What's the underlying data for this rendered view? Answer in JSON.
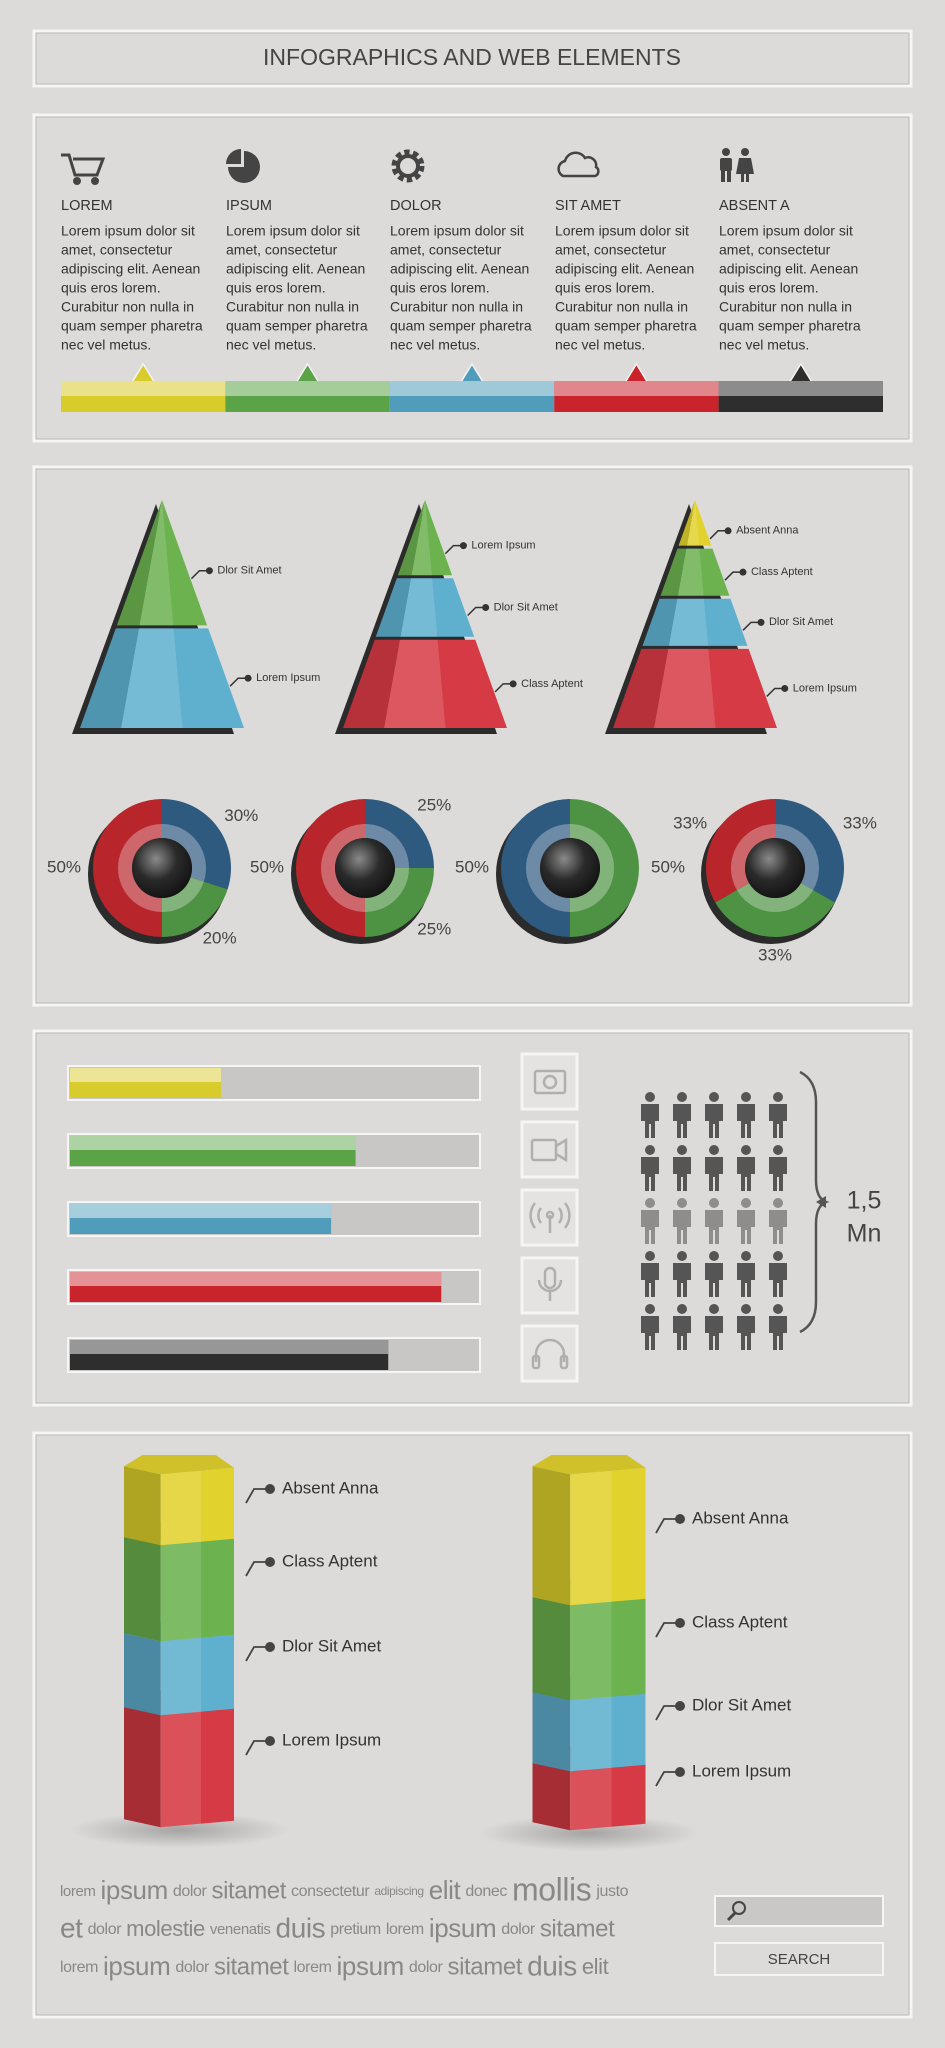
{
  "header": {
    "title": "INFOGRAPHICS AND WEB ELEMENTS"
  },
  "features": [
    {
      "heading": "LOREM",
      "color": "#d8cb2c",
      "lines": [
        "Lorem ipsum dolor sit",
        "amet, consectetur",
        "adipiscing elit. Aenean",
        "quis eros lorem.",
        "Curabitur non nulla in",
        "quam semper pharetra",
        "nec vel metus."
      ]
    },
    {
      "heading": "IPSUM",
      "color": "#5aa447",
      "lines": [
        "Lorem ipsum dolor sit",
        "amet, consectetur",
        "adipiscing elit. Aenean",
        "quis eros lorem.",
        "Curabitur non nulla in",
        "quam semper pharetra",
        "nec vel metus."
      ]
    },
    {
      "heading": "DOLOR",
      "color": "#4f9dbb",
      "lines": [
        "Lorem ipsum dolor sit",
        "amet, consectetur",
        "adipiscing elit. Aenean",
        "quis eros lorem.",
        "Curabitur non nulla in",
        "quam semper pharetra",
        "nec vel metus."
      ]
    },
    {
      "heading": "SIT AMET",
      "color": "#c9242c",
      "lines": [
        "Lorem ipsum dolor sit",
        "amet, consectetur",
        "adipiscing elit. Aenean",
        "quis eros lorem.",
        "Curabitur non nulla in",
        "quam semper pharetra",
        "nec vel metus."
      ]
    },
    {
      "heading": "ABSENT A",
      "color": "#2e2e2e",
      "lines": [
        "Lorem ipsum dolor sit",
        "amet, consectetur",
        "adipiscing elit. Aenean",
        "quis eros lorem.",
        "Curabitur non nulla in",
        "quam semper pharetra",
        "nec vel metus."
      ]
    }
  ],
  "pyramids": [
    {
      "labels": [
        "Dlor Sit Amet",
        "Lorem Ipsum"
      ],
      "colors": [
        "#6cb24f",
        "#5fb0cf"
      ]
    },
    {
      "labels": [
        "Lorem Ipsum",
        "Dlor Sit Amet",
        "Class Aptent"
      ],
      "colors": [
        "#6cb24f",
        "#5fb0cf",
        "#d63a44"
      ]
    },
    {
      "labels": [
        "Absent Anna",
        "Class Aptent",
        "Dlor Sit Amet",
        "Lorem Ipsum"
      ],
      "colors": [
        "#e2d22e",
        "#6cb24f",
        "#5fb0cf",
        "#d63a44"
      ]
    }
  ],
  "donuts": [
    {
      "values": [
        30,
        20,
        50
      ],
      "value_labels": [
        "30%",
        "20%",
        "50%"
      ],
      "colors": [
        "#2e5a80",
        "#4d9343",
        "#b8262c"
      ]
    },
    {
      "values": [
        25,
        25,
        50
      ],
      "value_labels": [
        "25%",
        "25%",
        "50%"
      ],
      "colors": [
        "#2e5a80",
        "#4d9343",
        "#b8262c"
      ]
    },
    {
      "values": [
        50,
        50
      ],
      "value_labels": [
        "50%",
        "50%"
      ],
      "colors": [
        "#4d9343",
        "#2e5a80"
      ]
    },
    {
      "values": [
        33,
        33,
        33
      ],
      "value_labels": [
        "33%",
        "33%",
        "33%"
      ],
      "colors": [
        "#2e5a80",
        "#4d9343",
        "#b8262c"
      ]
    }
  ],
  "progress": {
    "xlim": [
      0,
      100
    ],
    "values": [
      37,
      70,
      64,
      91,
      78
    ],
    "colors": [
      "#d8cb2c",
      "#5aa447",
      "#4f9dbb",
      "#c9242c",
      "#2e2e2e"
    ]
  },
  "people": {
    "label_lines": [
      "1,5",
      "Mn"
    ]
  },
  "columns": {
    "colors": [
      "#e2d22e",
      "#6cb24f",
      "#5fb0cf",
      "#d63a44"
    ],
    "items": [
      {
        "labels": [
          "Absent Anna",
          "Class Aptent",
          "Dlor Sit Amet",
          "Lorem Ipsum"
        ]
      },
      {
        "labels": [
          "Absent Anna",
          "Class Aptent",
          "Dlor Sit Amet",
          "Lorem Ipsum"
        ]
      }
    ]
  },
  "tags": [
    [
      "lorem",
      "ipsum",
      "dolor",
      "sitamet",
      "consectetur",
      "adipiscing",
      "elit",
      "donec",
      "mollis",
      "justo"
    ],
    [
      "et",
      "dolor",
      "molestie",
      "venenatis",
      "duis",
      "pretium",
      "lorem",
      "ipsum",
      "dolor",
      "sitamet"
    ],
    [
      "lorem",
      "ipsum",
      "dolor",
      "sitamet",
      "lorem",
      "ipsum",
      "dolor",
      "sitamet",
      "duis",
      "elit"
    ]
  ],
  "search": {
    "button": "SEARCH"
  }
}
